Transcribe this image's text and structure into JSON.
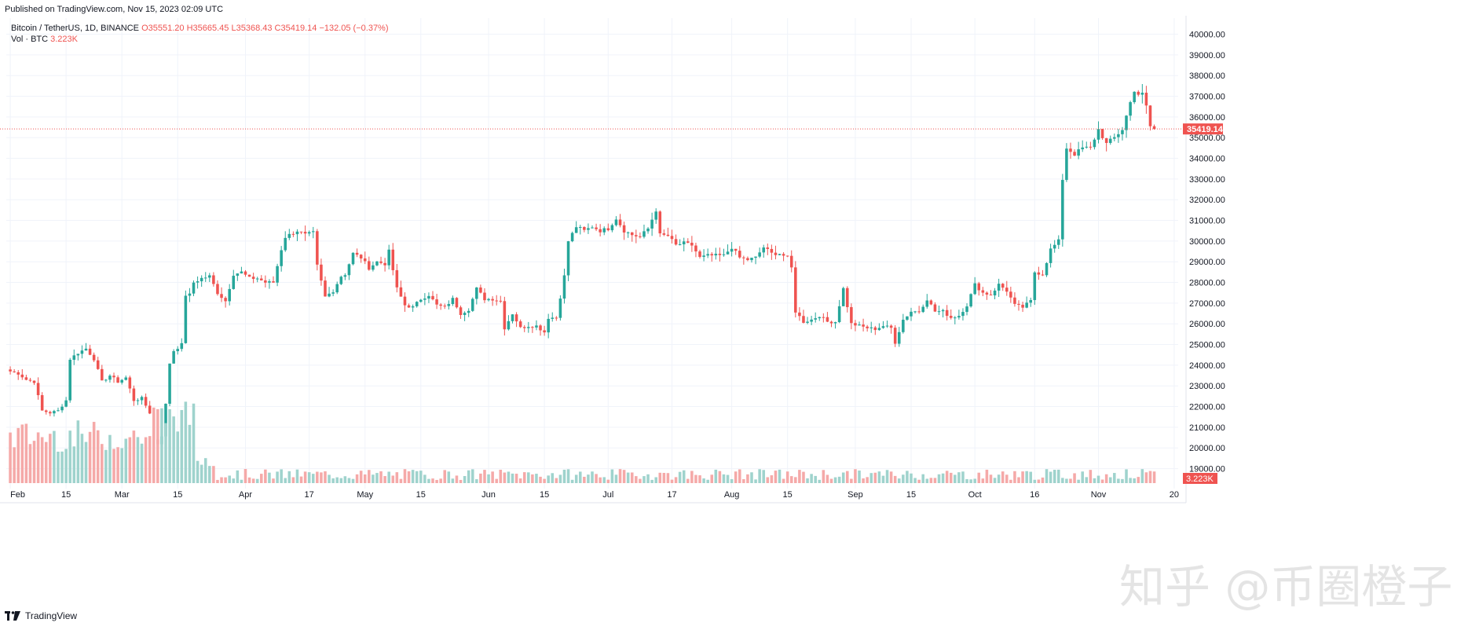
{
  "header": {
    "published": "Published on TradingView.com, Nov 15, 2023 02:09 UTC"
  },
  "legend": {
    "symbol": "Bitcoin / TetherUS, 1D, BINANCE",
    "o": "O35551.20",
    "h": "H35665.45",
    "l": "L35368.43",
    "c": "C35419.14",
    "change": "−132.05 (−0.37%)",
    "vol_label": "Vol · BTC",
    "vol_value": "3.223K"
  },
  "last_price_label": "35419.14",
  "volume_label": "3.223K",
  "footer": {
    "brand": "TradingView"
  },
  "watermark": "知乎 @币圈橙子",
  "colors": {
    "up": "#26a69a",
    "down": "#ef5350",
    "up_vol": "#9fd3cd",
    "down_vol": "#f5a9a8",
    "grid": "#f0f3fa",
    "text": "#131722"
  },
  "chart_data": {
    "type": "candlestick",
    "title": "Bitcoin / TetherUS, 1D, BINANCE",
    "y_ticks": [
      19000,
      20000,
      21000,
      22000,
      23000,
      24000,
      25000,
      26000,
      27000,
      28000,
      29000,
      30000,
      31000,
      32000,
      33000,
      34000,
      35000,
      36000,
      37000,
      38000,
      39000,
      40000
    ],
    "ylim": [
      18300,
      40400
    ],
    "x_ticks": [
      {
        "label": "Feb",
        "date": "2023-02-01"
      },
      {
        "label": "15",
        "date": "2023-02-15"
      },
      {
        "label": "Mar",
        "date": "2023-03-01"
      },
      {
        "label": "15",
        "date": "2023-03-15"
      },
      {
        "label": "Apr",
        "date": "2023-04-01"
      },
      {
        "label": "17",
        "date": "2023-04-17"
      },
      {
        "label": "May",
        "date": "2023-05-01"
      },
      {
        "label": "15",
        "date": "2023-05-15"
      },
      {
        "label": "Jun",
        "date": "2023-06-01"
      },
      {
        "label": "15",
        "date": "2023-06-15"
      },
      {
        "label": "Jul",
        "date": "2023-07-01"
      },
      {
        "label": "17",
        "date": "2023-07-17"
      },
      {
        "label": "Aug",
        "date": "2023-08-01"
      },
      {
        "label": "15",
        "date": "2023-08-15"
      },
      {
        "label": "Sep",
        "date": "2023-09-01"
      },
      {
        "label": "15",
        "date": "2023-09-15"
      },
      {
        "label": "Oct",
        "date": "2023-10-01"
      },
      {
        "label": "16",
        "date": "2023-10-16"
      },
      {
        "label": "Nov",
        "date": "2023-11-01"
      },
      {
        "label": "20",
        "date": "2023-11-20"
      }
    ],
    "last_price": 35419.14,
    "close_anchors": [
      [
        "2023-02-01",
        23700
      ],
      [
        "2023-02-03",
        23600
      ],
      [
        "2023-02-05",
        23300
      ],
      [
        "2023-02-07",
        23200
      ],
      [
        "2023-02-09",
        21800
      ],
      [
        "2023-02-11",
        21700
      ],
      [
        "2023-02-13",
        21800
      ],
      [
        "2023-02-15",
        22300
      ],
      [
        "2023-02-16",
        24300
      ],
      [
        "2023-02-18",
        24600
      ],
      [
        "2023-02-20",
        24800
      ],
      [
        "2023-02-22",
        24300
      ],
      [
        "2023-02-24",
        23200
      ],
      [
        "2023-02-26",
        23500
      ],
      [
        "2023-02-28",
        23200
      ],
      [
        "2023-03-02",
        23400
      ],
      [
        "2023-03-04",
        22300
      ],
      [
        "2023-03-06",
        22400
      ],
      [
        "2023-03-08",
        21700
      ],
      [
        "2023-03-09",
        20400
      ],
      [
        "2023-03-10",
        20200
      ],
      [
        "2023-03-11",
        20600
      ],
      [
        "2023-03-12",
        22100
      ],
      [
        "2023-03-13",
        24100
      ],
      [
        "2023-03-14",
        24700
      ],
      [
        "2023-03-16",
        25000
      ],
      [
        "2023-03-17",
        27400
      ],
      [
        "2023-03-18",
        27400
      ],
      [
        "2023-03-19",
        28000
      ],
      [
        "2023-03-21",
        28200
      ],
      [
        "2023-03-23",
        28300
      ],
      [
        "2023-03-25",
        27500
      ],
      [
        "2023-03-27",
        27100
      ],
      [
        "2023-03-29",
        28400
      ],
      [
        "2023-03-31",
        28500
      ],
      [
        "2023-04-02",
        28200
      ],
      [
        "2023-04-04",
        28200
      ],
      [
        "2023-04-06",
        28000
      ],
      [
        "2023-04-08",
        28000
      ],
      [
        "2023-04-10",
        29600
      ],
      [
        "2023-04-11",
        30200
      ],
      [
        "2023-04-13",
        30400
      ],
      [
        "2023-04-14",
        30500
      ],
      [
        "2023-04-16",
        30300
      ],
      [
        "2023-04-18",
        30400
      ],
      [
        "2023-04-19",
        28800
      ],
      [
        "2023-04-21",
        27300
      ],
      [
        "2023-04-23",
        27600
      ],
      [
        "2023-04-25",
        28300
      ],
      [
        "2023-04-26",
        28400
      ],
      [
        "2023-04-28",
        29400
      ],
      [
        "2023-04-30",
        29200
      ],
      [
        "2023-05-02",
        28700
      ],
      [
        "2023-05-04",
        29000
      ],
      [
        "2023-05-06",
        28900
      ],
      [
        "2023-05-07",
        29500
      ],
      [
        "2023-05-09",
        27700
      ],
      [
        "2023-05-11",
        26900
      ],
      [
        "2023-05-13",
        26800
      ],
      [
        "2023-05-15",
        27200
      ],
      [
        "2023-05-17",
        27400
      ],
      [
        "2023-05-19",
        26900
      ],
      [
        "2023-05-21",
        26800
      ],
      [
        "2023-05-23",
        27200
      ],
      [
        "2023-05-25",
        26500
      ],
      [
        "2023-05-27",
        26700
      ],
      [
        "2023-05-29",
        27700
      ],
      [
        "2023-05-31",
        27200
      ],
      [
        "2023-06-02",
        27200
      ],
      [
        "2023-06-04",
        27100
      ],
      [
        "2023-06-05",
        25800
      ],
      [
        "2023-06-07",
        26500
      ],
      [
        "2023-06-09",
        25800
      ],
      [
        "2023-06-11",
        25900
      ],
      [
        "2023-06-13",
        25900
      ],
      [
        "2023-06-15",
        25600
      ],
      [
        "2023-06-16",
        26300
      ],
      [
        "2023-06-18",
        26300
      ],
      [
        "2023-06-20",
        28300
      ],
      [
        "2023-06-21",
        30000
      ],
      [
        "2023-06-23",
        30700
      ],
      [
        "2023-06-25",
        30500
      ],
      [
        "2023-06-27",
        30700
      ],
      [
        "2023-06-29",
        30500
      ],
      [
        "2023-07-01",
        30600
      ],
      [
        "2023-07-03",
        31100
      ],
      [
        "2023-07-05",
        30500
      ],
      [
        "2023-07-07",
        30300
      ],
      [
        "2023-07-09",
        30200
      ],
      [
        "2023-07-11",
        30600
      ],
      [
        "2023-07-13",
        31500
      ],
      [
        "2023-07-14",
        30300
      ],
      [
        "2023-07-16",
        30250
      ],
      [
        "2023-07-18",
        29800
      ],
      [
        "2023-07-20",
        29900
      ],
      [
        "2023-07-22",
        29800
      ],
      [
        "2023-07-24",
        29200
      ],
      [
        "2023-07-26",
        29300
      ],
      [
        "2023-07-28",
        29300
      ],
      [
        "2023-07-30",
        29300
      ],
      [
        "2023-08-01",
        29700
      ],
      [
        "2023-08-03",
        29200
      ],
      [
        "2023-08-05",
        29100
      ],
      [
        "2023-08-07",
        29200
      ],
      [
        "2023-08-09",
        29700
      ],
      [
        "2023-08-11",
        29400
      ],
      [
        "2023-08-13",
        29400
      ],
      [
        "2023-08-15",
        29200
      ],
      [
        "2023-08-16",
        28700
      ],
      [
        "2023-08-17",
        26600
      ],
      [
        "2023-08-19",
        26100
      ],
      [
        "2023-08-21",
        26200
      ],
      [
        "2023-08-23",
        26400
      ],
      [
        "2023-08-25",
        26100
      ],
      [
        "2023-08-27",
        26100
      ],
      [
        "2023-08-29",
        27700
      ],
      [
        "2023-08-31",
        26000
      ],
      [
        "2023-09-02",
        25900
      ],
      [
        "2023-09-04",
        25800
      ],
      [
        "2023-09-06",
        25750
      ],
      [
        "2023-09-08",
        25900
      ],
      [
        "2023-09-10",
        25800
      ],
      [
        "2023-09-11",
        25100
      ],
      [
        "2023-09-13",
        26200
      ],
      [
        "2023-09-15",
        26600
      ],
      [
        "2023-09-17",
        26600
      ],
      [
        "2023-09-19",
        27200
      ],
      [
        "2023-09-21",
        26600
      ],
      [
        "2023-09-23",
        26600
      ],
      [
        "2023-09-25",
        26300
      ],
      [
        "2023-09-27",
        26400
      ],
      [
        "2023-09-29",
        26900
      ],
      [
        "2023-10-01",
        27900
      ],
      [
        "2023-10-03",
        27500
      ],
      [
        "2023-10-05",
        27400
      ],
      [
        "2023-10-07",
        27900
      ],
      [
        "2023-10-09",
        27600
      ],
      [
        "2023-10-11",
        26900
      ],
      [
        "2023-10-13",
        26800
      ],
      [
        "2023-10-15",
        27100
      ],
      [
        "2023-10-16",
        28500
      ],
      [
        "2023-10-18",
        28400
      ],
      [
        "2023-10-20",
        29600
      ],
      [
        "2023-10-22",
        30000
      ],
      [
        "2023-10-23",
        33000
      ],
      [
        "2023-10-24",
        34500
      ],
      [
        "2023-10-26",
        34200
      ],
      [
        "2023-10-28",
        34500
      ],
      [
        "2023-10-30",
        34500
      ],
      [
        "2023-11-01",
        35400
      ],
      [
        "2023-11-03",
        34700
      ],
      [
        "2023-11-05",
        35000
      ],
      [
        "2023-11-07",
        35400
      ],
      [
        "2023-11-09",
        36700
      ],
      [
        "2023-11-10",
        37300
      ],
      [
        "2023-11-11",
        37100
      ],
      [
        "2023-11-12",
        37100
      ],
      [
        "2023-11-13",
        36500
      ],
      [
        "2023-11-14",
        35551.2
      ],
      [
        "2023-11-15",
        35419.14
      ]
    ]
  }
}
